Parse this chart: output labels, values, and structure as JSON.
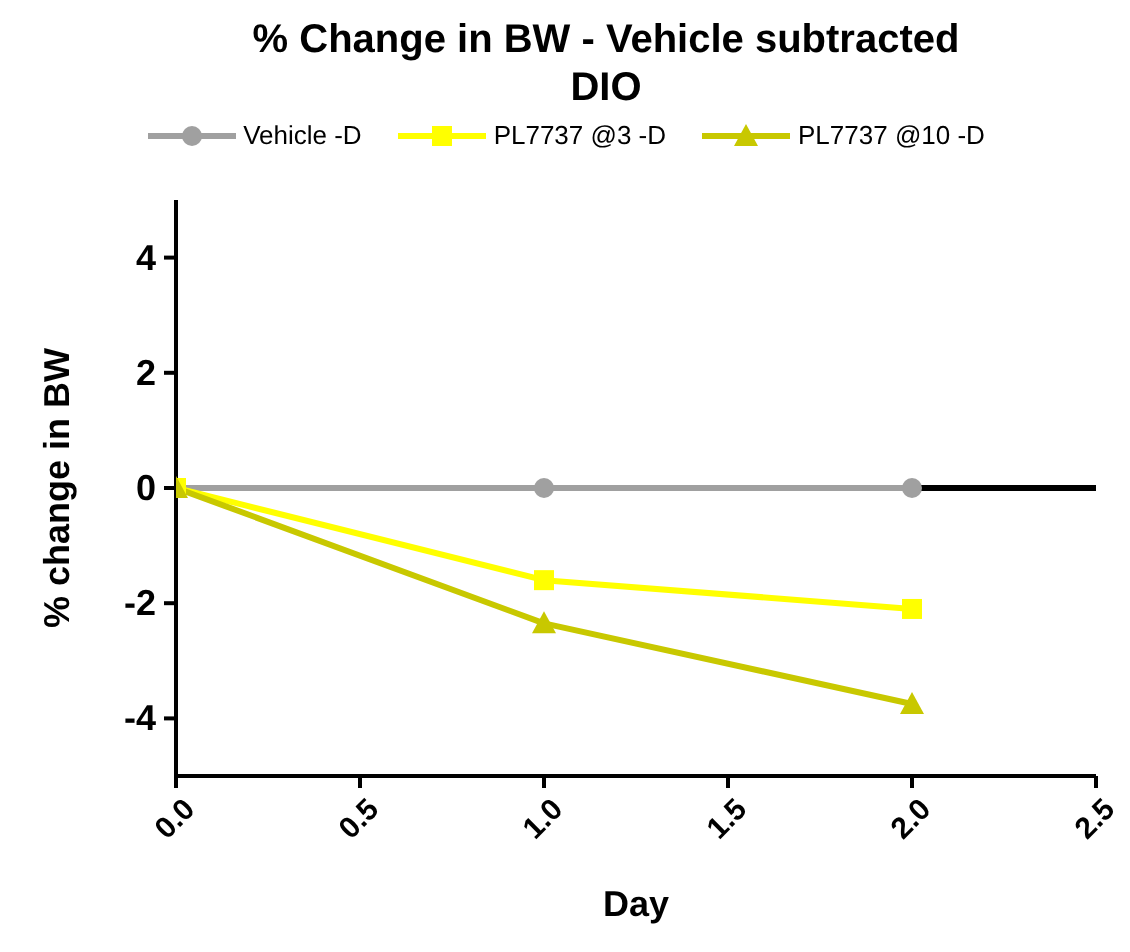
{
  "chart_data": {
    "type": "line",
    "title": "% Change in  BW - Vehicle subtracted\nDIO",
    "xlabel": "Day",
    "ylabel": "% change in BW",
    "x": [
      0,
      1,
      2
    ],
    "series": [
      {
        "name": "Vehicle -D",
        "color": "#a0a0a0",
        "marker": "circle",
        "values": [
          0,
          0,
          0
        ]
      },
      {
        "name": "PL7737 @3 -D",
        "color": "#ffff00",
        "marker": "square",
        "values": [
          0,
          -1.6,
          -2.1
        ]
      },
      {
        "name": "PL7737 @10 -D",
        "color": "#c8c800",
        "marker": "triangle",
        "values": [
          0,
          -2.35,
          -3.75
        ]
      }
    ],
    "xlim": [
      0,
      2.5
    ],
    "xticks": [
      {
        "value": 0,
        "label": "0.0"
      },
      {
        "value": 0.5,
        "label": "0.5"
      },
      {
        "value": 1,
        "label": "1.0"
      },
      {
        "value": 1.5,
        "label": "1.5"
      },
      {
        "value": 2,
        "label": "2.0"
      },
      {
        "value": 2.5,
        "label": "2.5"
      }
    ],
    "ylim": [
      -5,
      5
    ],
    "yticks": [
      -4,
      -2,
      0,
      2,
      4
    ],
    "ref_lines": [
      {
        "axis": "y",
        "value": 0,
        "color": "#000000"
      }
    ],
    "legend": "top",
    "grid": false,
    "line_style": "solid"
  }
}
